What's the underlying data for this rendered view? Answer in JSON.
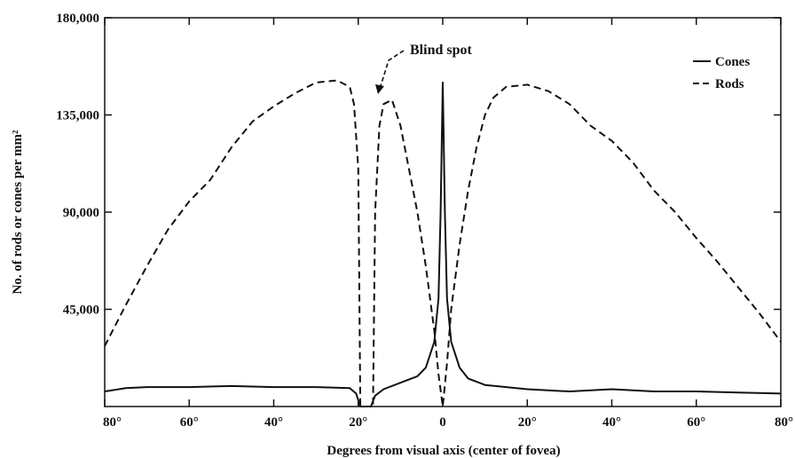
{
  "chart_data": {
    "type": "line",
    "title": "",
    "xlabel": "Degrees from visual axis (center of fovea)",
    "ylabel": "No. of rods or cones per mm²",
    "xlim": [
      -80,
      80
    ],
    "ylim": [
      0,
      180000
    ],
    "x_tick_values": [
      -80,
      -60,
      -40,
      -20,
      0,
      20,
      40,
      60,
      80
    ],
    "x_tick_labels": [
      "80°",
      "60°",
      "40°",
      "20°",
      "0",
      "20°",
      "40°",
      "60°",
      "80°"
    ],
    "y_tick_values": [
      45000,
      90000,
      135000,
      180000
    ],
    "y_tick_labels": [
      "45,000",
      "90,000",
      "135,000",
      "180,000"
    ],
    "legend": {
      "position": "top-right",
      "entries": [
        "Cones",
        "Rods"
      ]
    },
    "annotation": {
      "text": "Blind spot",
      "x": -18
    },
    "grid": false,
    "series": [
      {
        "name": "Cones",
        "style": "solid",
        "color": "#111111",
        "x": [
          -80,
          -75,
          -70,
          -60,
          -50,
          -40,
          -30,
          -22,
          -20.5,
          -19.5,
          -17,
          -16,
          -14,
          -10,
          -6,
          -4,
          -2,
          -1,
          -0.5,
          0,
          0.5,
          1,
          2,
          4,
          6,
          10,
          20,
          30,
          40,
          50,
          60,
          70,
          80
        ],
        "y": [
          7000,
          8500,
          9000,
          9000,
          9500,
          9000,
          9000,
          8500,
          6000,
          0,
          0,
          5000,
          8000,
          11000,
          14000,
          18000,
          30000,
          50000,
          90000,
          150000,
          90000,
          50000,
          30000,
          18000,
          13000,
          10000,
          8000,
          7000,
          8000,
          7000,
          7000,
          6500,
          6000
        ]
      },
      {
        "name": "Rods",
        "style": "dashed",
        "color": "#111111",
        "x": [
          -80,
          -75,
          -70,
          -65,
          -60,
          -55,
          -50,
          -45,
          -40,
          -35,
          -30,
          -25,
          -22,
          -21,
          -20,
          -19.5,
          -16.5,
          -16,
          -15,
          -14,
          -12,
          -10,
          -8,
          -6,
          -4,
          -2,
          -1,
          0,
          1,
          2,
          4,
          6,
          8,
          10,
          12,
          15,
          20,
          25,
          30,
          35,
          40,
          45,
          50,
          55,
          60,
          65,
          70,
          75,
          80
        ],
        "y": [
          28000,
          47000,
          65000,
          82000,
          95000,
          105000,
          120000,
          132000,
          139000,
          145000,
          150000,
          151000,
          148000,
          140000,
          110000,
          0,
          0,
          90000,
          130000,
          140000,
          142000,
          130000,
          110000,
          90000,
          65000,
          35000,
          15000,
          0,
          20000,
          45000,
          75000,
          100000,
          120000,
          135000,
          143000,
          148000,
          149000,
          146000,
          140000,
          130000,
          123000,
          113000,
          100000,
          90000,
          78000,
          67000,
          55000,
          43000,
          30000
        ]
      }
    ]
  }
}
